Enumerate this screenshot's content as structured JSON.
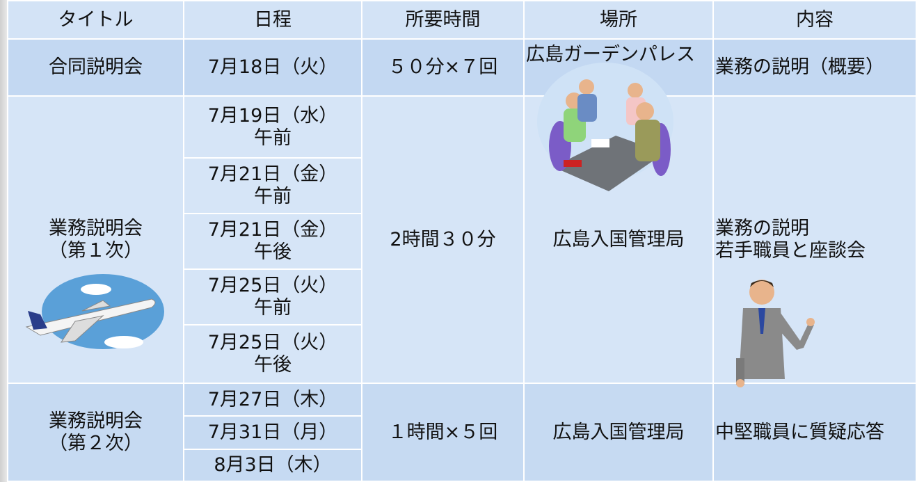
{
  "table": {
    "header": [
      "タイトル",
      "日程",
      "所要時間",
      "場所",
      "内容"
    ],
    "rows": [
      {
        "title": [
          "合同説明会"
        ],
        "schedule": [
          {
            "date": "7月18日（火）"
          }
        ],
        "duration": "５０分×７回",
        "place": "広島ガーデンパレス",
        "content": [
          "業務の説明（概要）"
        ]
      },
      {
        "title": [
          "業務説明会",
          "（第１次）"
        ],
        "schedule": [
          {
            "date": "7月19日（水）",
            "time": "午前"
          },
          {
            "date": "7月21日（金）",
            "time": "午前"
          },
          {
            "date": "7月21日（金）",
            "time": "午後"
          },
          {
            "date": "7月25日（火）",
            "time": "午前"
          },
          {
            "date": "7月25日（火）",
            "time": "午後"
          }
        ],
        "duration": "2時間３０分",
        "place": "広島入国管理局",
        "content": [
          "業務の説明",
          "若手職員と座談会"
        ]
      },
      {
        "title": [
          "業務説明会",
          "（第２次）"
        ],
        "schedule": [
          {
            "date": "7月27日（木）"
          },
          {
            "date": "7月31日（月）"
          },
          {
            "date": "8月3日（木）"
          }
        ],
        "duration": "１時間×５回",
        "place": "広島入国管理局",
        "content": [
          "中堅職員に質疑応答"
        ]
      }
    ]
  }
}
